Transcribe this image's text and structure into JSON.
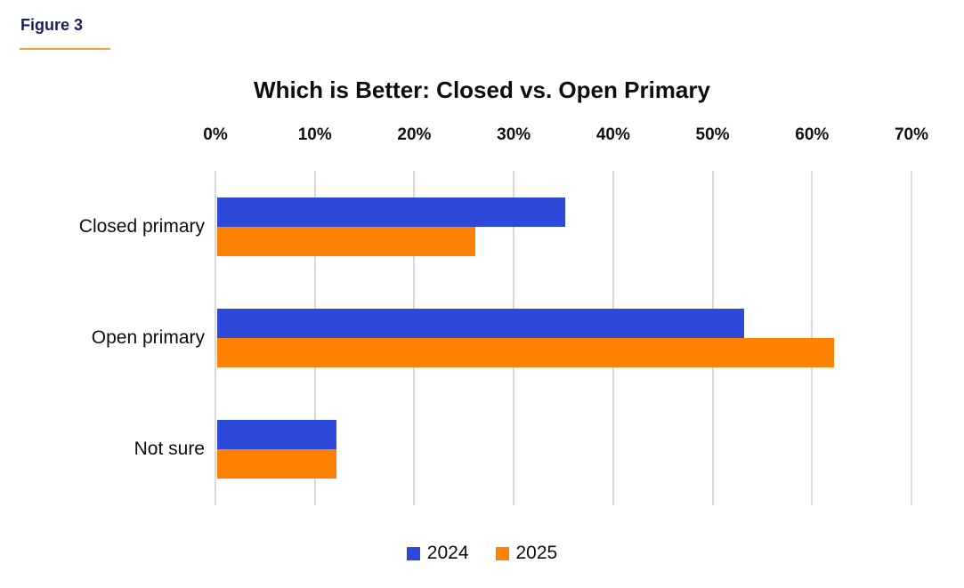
{
  "figure_label": "Figure 3",
  "chart_data": {
    "type": "bar",
    "orientation": "horizontal",
    "title": "Which is Better: Closed vs. Open Primary",
    "categories": [
      "Closed primary",
      "Open primary",
      "Not sure"
    ],
    "series": [
      {
        "name": "2024",
        "color": "#2c49da",
        "values": [
          35,
          53,
          12
        ]
      },
      {
        "name": "2025",
        "color": "#ff8103",
        "values": [
          26,
          62,
          12
        ]
      }
    ],
    "value_unit": "percent",
    "x_ticks": [
      "0%",
      "10%",
      "20%",
      "30%",
      "40%",
      "50%",
      "60%",
      "70%"
    ],
    "xlim": [
      0,
      70
    ],
    "grid": "vertical",
    "gridline_color": "#d9d9d9",
    "legend_position": "bottom"
  },
  "styles": {
    "figure_label_color": "#1b2060",
    "figure_underline_color": "#f49e35",
    "background": "#ffffff",
    "text_color": "#0d0d0d"
  }
}
